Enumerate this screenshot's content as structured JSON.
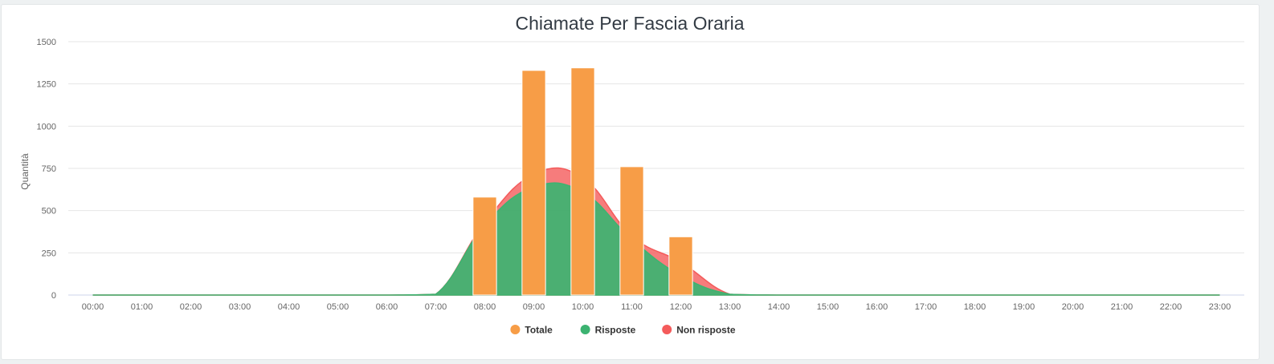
{
  "chart_data": {
    "type": "bar",
    "title": "Chiamate Per Fascia Oraria",
    "xlabel": "",
    "ylabel": "Quantità",
    "ylim": [
      0,
      1500
    ],
    "yticks": [
      0,
      250,
      500,
      750,
      1000,
      1250,
      1500
    ],
    "grid": true,
    "legend_position": "bottom-center",
    "categories": [
      "00:00",
      "01:00",
      "02:00",
      "03:00",
      "04:00",
      "05:00",
      "06:00",
      "07:00",
      "08:00",
      "09:00",
      "10:00",
      "11:00",
      "12:00",
      "13:00",
      "14:00",
      "15:00",
      "16:00",
      "17:00",
      "18:00",
      "19:00",
      "20:00",
      "21:00",
      "22:00",
      "23:00"
    ],
    "series": [
      {
        "name": "Totale",
        "kind": "bar",
        "color": "#f79d47",
        "values": [
          0,
          0,
          0,
          0,
          0,
          0,
          0,
          0,
          580,
          1330,
          1345,
          760,
          345,
          0,
          0,
          0,
          0,
          0,
          0,
          0,
          0,
          0,
          0,
          0
        ]
      },
      {
        "name": "Risposte",
        "kind": "area",
        "color": "#3cb371",
        "values": [
          0,
          0,
          0,
          0,
          0,
          0,
          0,
          5,
          415,
          640,
          610,
          330,
          115,
          5,
          0,
          0,
          0,
          0,
          0,
          0,
          0,
          0,
          0,
          0
        ]
      },
      {
        "name": "Non risposte",
        "kind": "area",
        "color": "#f45b5b",
        "values": [
          0,
          0,
          0,
          0,
          0,
          0,
          0,
          0,
          15,
          75,
          85,
          20,
          80,
          0,
          0,
          0,
          0,
          0,
          0,
          0,
          0,
          0,
          0,
          0
        ]
      }
    ]
  }
}
